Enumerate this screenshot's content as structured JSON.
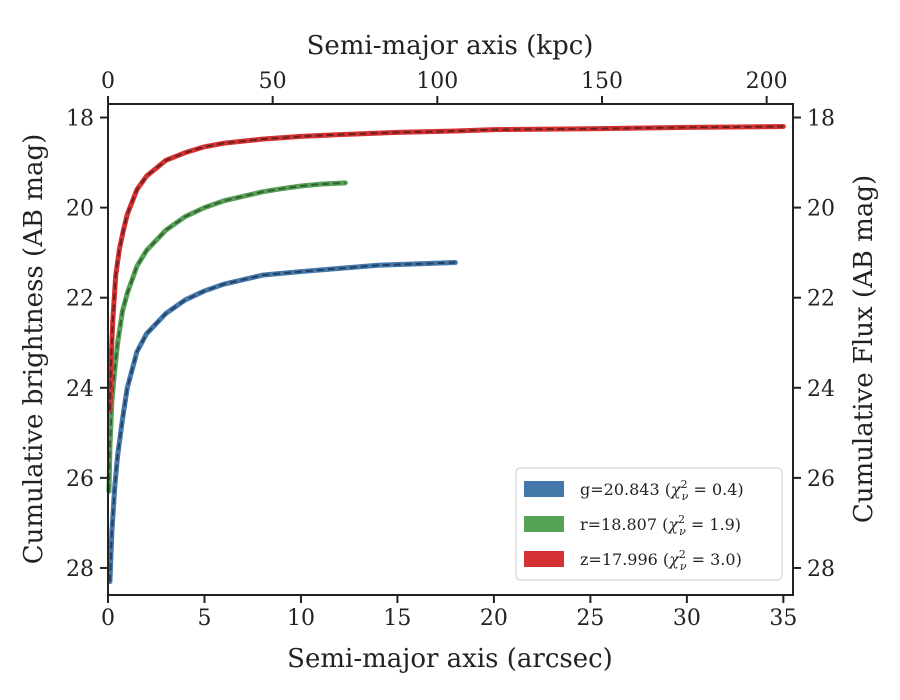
{
  "chart_data": {
    "type": "line",
    "xlabel": "Semi-major axis (arcsec)",
    "ylabel": "Cumulative brightness (AB mag)",
    "top_xlabel": "Semi-major axis (kpc)",
    "right_ylabel": "Cumulative Flux (AB mag)",
    "xlim": [
      0,
      35.5
    ],
    "ylim": [
      28.6,
      17.7
    ],
    "y_inverted": true,
    "top_xlim": [
      0,
      208
    ],
    "xticks": [
      "0",
      "5",
      "10",
      "15",
      "20",
      "25",
      "30",
      "35"
    ],
    "xtick_values": [
      0,
      5,
      10,
      15,
      20,
      25,
      30,
      35
    ],
    "yticks": [
      "18",
      "20",
      "22",
      "24",
      "26",
      "28"
    ],
    "ytick_values": [
      18,
      20,
      22,
      24,
      26,
      28
    ],
    "top_xticks": [
      "0",
      "50",
      "100",
      "150",
      "200"
    ],
    "top_xtick_values": [
      0,
      50,
      100,
      150,
      200
    ],
    "grid": false,
    "legend_position": "bottom-right",
    "series": [
      {
        "label_prefix": "g=20.843 (",
        "label_chi": "χ",
        "label_sup": "2",
        "label_sub": "ν",
        "label_suffix": " = 0.4)",
        "color": "#4477aa",
        "model_color": "#1a2f4a",
        "x": [
          0.1,
          0.2,
          0.35,
          0.5,
          0.75,
          1.0,
          1.5,
          2.0,
          3.0,
          4.0,
          5.0,
          6.0,
          7.0,
          8.0,
          10.0,
          12.0,
          14.0,
          16.0,
          18.0
        ],
        "y": [
          28.3,
          27.2,
          26.2,
          25.5,
          24.7,
          24.0,
          23.2,
          22.8,
          22.35,
          22.05,
          21.85,
          21.7,
          21.6,
          21.5,
          21.42,
          21.35,
          21.28,
          21.25,
          21.22
        ]
      },
      {
        "label_prefix": "r=18.807 (",
        "label_chi": "χ",
        "label_sup": "2",
        "label_sub": "ν",
        "label_suffix": " = 1.9)",
        "color": "#55a155",
        "model_color": "#2a4a2a",
        "x": [
          0.05,
          0.1,
          0.2,
          0.35,
          0.5,
          0.75,
          1.0,
          1.5,
          2.0,
          3.0,
          4.0,
          5.0,
          6.0,
          7.0,
          8.0,
          9.0,
          10.0,
          11.0,
          12.3
        ],
        "y": [
          26.3,
          25.3,
          24.3,
          23.6,
          23.0,
          22.3,
          21.9,
          21.3,
          20.95,
          20.5,
          20.2,
          20.0,
          19.85,
          19.75,
          19.65,
          19.58,
          19.52,
          19.48,
          19.45
        ]
      },
      {
        "label_prefix": "z=17.996 (",
        "label_chi": "χ",
        "label_sup": "2",
        "label_sub": "ν",
        "label_suffix": " = 3.0)",
        "color": "#d43232",
        "model_color": "#4a1a1a",
        "x": [
          0.1,
          0.15,
          0.25,
          0.4,
          0.6,
          0.8,
          1.0,
          1.5,
          2.0,
          3.0,
          4.0,
          5.0,
          6.0,
          8.0,
          10.0,
          12.0,
          15.0,
          18.0,
          20.0,
          25.0,
          30.0,
          35.0
        ],
        "y": [
          24.5,
          23.5,
          22.5,
          21.5,
          20.9,
          20.5,
          20.15,
          19.6,
          19.3,
          18.95,
          18.78,
          18.65,
          18.57,
          18.48,
          18.42,
          18.38,
          18.33,
          18.3,
          18.27,
          18.25,
          18.22,
          18.2
        ]
      }
    ]
  }
}
